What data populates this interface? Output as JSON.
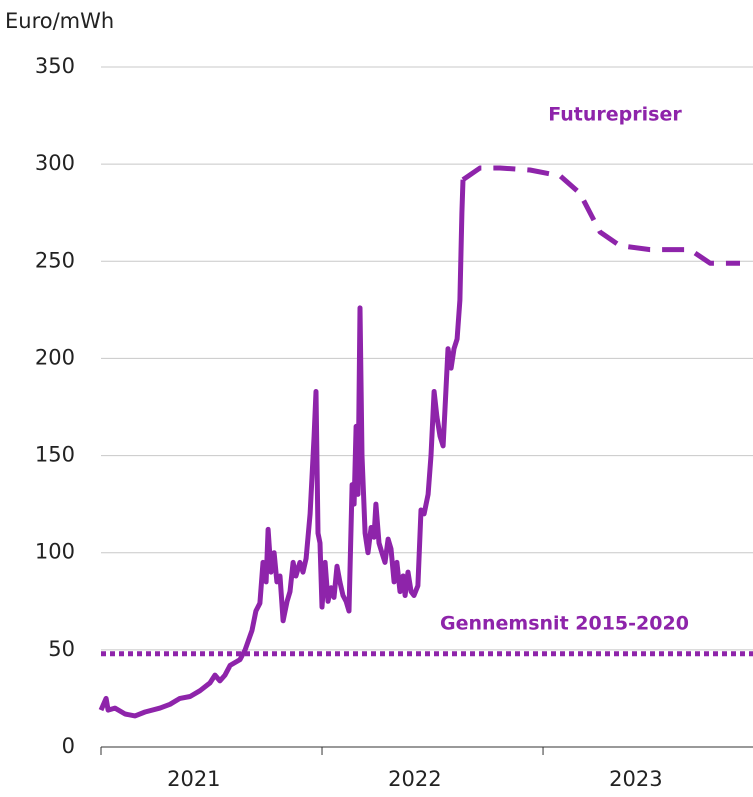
{
  "chart_data": {
    "type": "line",
    "y_label": "Euro/mWh",
    "xlim": [
      2021,
      2023.95
    ],
    "xticks": [
      2021,
      2022,
      2023
    ],
    "year_labels": [
      "2021",
      "2022",
      "2023"
    ],
    "ylim": [
      0,
      350
    ],
    "yticks": [
      0,
      50,
      100,
      150,
      200,
      250,
      300,
      350
    ],
    "grid": true,
    "color": "#8e24aa",
    "series": [
      {
        "style": "solid",
        "x": [
          2021.0,
          2021.023,
          2021.032,
          2021.063,
          2021.109,
          2021.154,
          2021.199,
          2021.267,
          2021.312,
          2021.357,
          2021.403,
          2021.448,
          2021.493,
          2021.516,
          2021.538,
          2021.561,
          2021.584,
          2021.629,
          2021.652,
          2021.683,
          2021.701,
          2021.719,
          2021.733,
          2021.747,
          2021.756,
          2021.769,
          2021.783,
          2021.796,
          2021.81,
          2021.824,
          2021.842,
          2021.855,
          2021.869,
          2021.882,
          2021.9,
          2021.914,
          2021.928,
          2021.946,
          2021.955,
          2021.964,
          2021.973,
          2021.982,
          2021.991,
          2022.0,
          2022.014,
          2022.027,
          2022.041,
          2022.054,
          2022.068,
          2022.081,
          2022.095,
          2022.109,
          2022.122,
          2022.136,
          2022.145,
          2022.154,
          2022.163,
          2022.172,
          2022.181,
          2022.195,
          2022.208,
          2022.222,
          2022.235,
          2022.244,
          2022.258,
          2022.271,
          2022.285,
          2022.299,
          2022.312,
          2022.326,
          2022.339,
          2022.353,
          2022.367,
          2022.376,
          2022.389,
          2022.403,
          2022.416,
          2022.434,
          2022.448,
          2022.462,
          2022.48,
          2022.493,
          2022.507,
          2022.52,
          2022.534,
          2022.548,
          2022.557,
          2022.57,
          2022.584,
          2022.597,
          2022.611,
          2022.624,
          2022.633,
          2022.638
        ],
        "values": [
          19,
          25,
          19,
          20,
          17,
          16,
          18,
          20,
          22,
          25,
          26,
          29,
          33,
          37,
          34,
          37,
          42,
          45,
          50,
          60,
          70,
          74,
          95,
          85,
          112,
          90,
          100,
          85,
          88,
          65,
          75,
          80,
          95,
          88,
          95,
          90,
          97,
          120,
          140,
          160,
          183,
          110,
          105,
          72,
          95,
          75,
          82,
          77,
          93,
          85,
          78,
          75,
          70,
          135,
          125,
          165,
          130,
          226,
          150,
          110,
          100,
          113,
          108,
          125,
          105,
          100,
          95,
          107,
          102,
          85,
          95,
          80,
          88,
          78,
          90,
          80,
          78,
          83,
          122,
          120,
          130,
          150,
          183,
          170,
          160,
          155,
          175,
          205,
          195,
          205,
          210,
          230,
          275,
          292
        ]
      },
      {
        "name": "Futurepriser",
        "style": "dashed",
        "x": [
          2022.638,
          2022.715,
          2022.805,
          2022.941,
          2023.077,
          2023.167,
          2023.258,
          2023.348,
          2023.484,
          2023.665,
          2023.756,
          2023.891
        ],
        "values": [
          292,
          298,
          298,
          297,
          294,
          285,
          265,
          258,
          256,
          256,
          249,
          249
        ]
      },
      {
        "name": "Gennemsnit 2015-2020",
        "style": "dotted",
        "x": [
          2021.0,
          2023.95
        ],
        "values": [
          48,
          48
        ]
      }
    ]
  }
}
